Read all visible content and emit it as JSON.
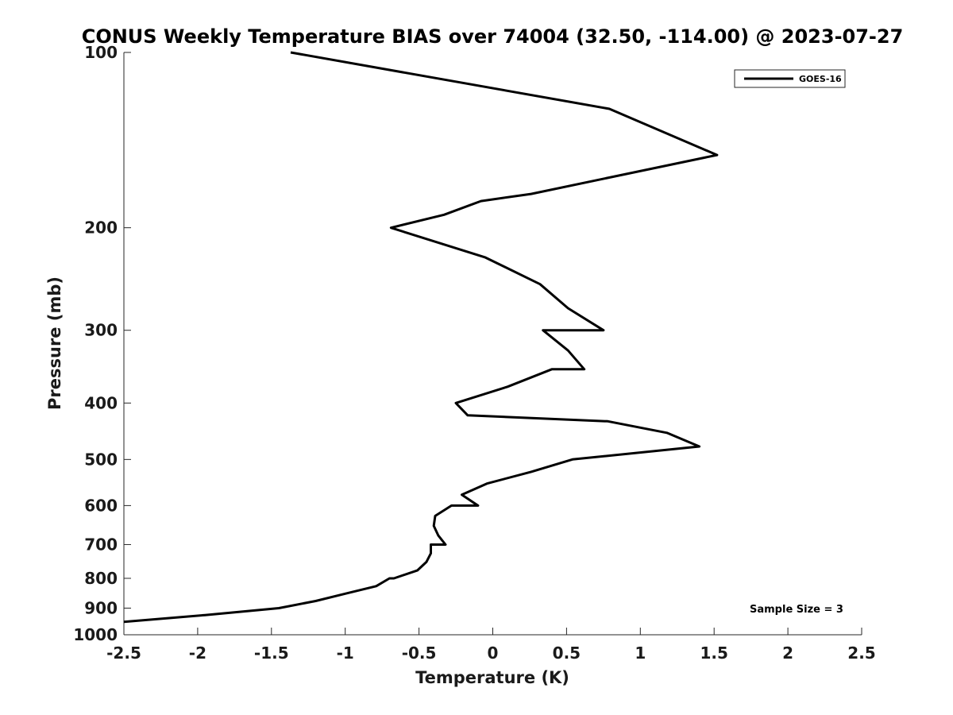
{
  "chart_data": {
    "type": "line",
    "title": "CONUS Weekly Temperature BIAS over 74004 (32.50, -114.00) @ 2023-07-27",
    "xlabel": "Temperature (K)",
    "ylabel": "Pressure (mb)",
    "xlim": [
      -2.5,
      2.5
    ],
    "ylim": [
      100,
      1000
    ],
    "y_scale": "log",
    "y_reversed": true,
    "x_ticks": [
      -2.5,
      -2,
      -1.5,
      -1,
      -0.5,
      0,
      0.5,
      1,
      1.5,
      2,
      2.5
    ],
    "x_tick_labels": [
      "-2.5",
      "-2",
      "-1.5",
      "-1",
      "-0.5",
      "0",
      "0.5",
      "1",
      "1.5",
      "2",
      "2.5"
    ],
    "y_ticks": [
      100,
      200,
      300,
      400,
      500,
      600,
      700,
      800,
      900,
      1000
    ],
    "y_tick_labels": [
      "100",
      "200",
      "300",
      "400",
      "500",
      "600",
      "700",
      "800",
      "900",
      "1000"
    ],
    "grid": false,
    "legend_position": "top-right",
    "series": [
      {
        "name": "GOES-16",
        "color": "#000000",
        "x": [
          -1.37,
          0.79,
          1.52,
          0.26,
          -0.08,
          -0.33,
          -0.69,
          -0.05,
          0.32,
          0.51,
          0.75,
          0.34,
          0.51,
          0.62,
          0.4,
          0.1,
          -0.25,
          -0.17,
          0.78,
          1.18,
          1.4,
          0.54,
          0.26,
          -0.04,
          -0.21,
          -0.1,
          -0.28,
          -0.39,
          -0.4,
          -0.37,
          -0.32,
          -0.42,
          -0.42,
          -0.45,
          -0.51,
          -0.67,
          -0.7,
          -0.79,
          -1.0,
          -1.2,
          -1.45,
          -1.95,
          -2.5
        ],
        "y": [
          100,
          125,
          150,
          175,
          180,
          190,
          200,
          225,
          250,
          275,
          300,
          300,
          325,
          350,
          350,
          375,
          400,
          420,
          430,
          450,
          475,
          500,
          525,
          550,
          575,
          600,
          600,
          625,
          650,
          675,
          700,
          700,
          725,
          750,
          775,
          800,
          800,
          825,
          850,
          875,
          900,
          925,
          950
        ]
      }
    ],
    "annotations": [
      "Sample Size = 3"
    ]
  }
}
